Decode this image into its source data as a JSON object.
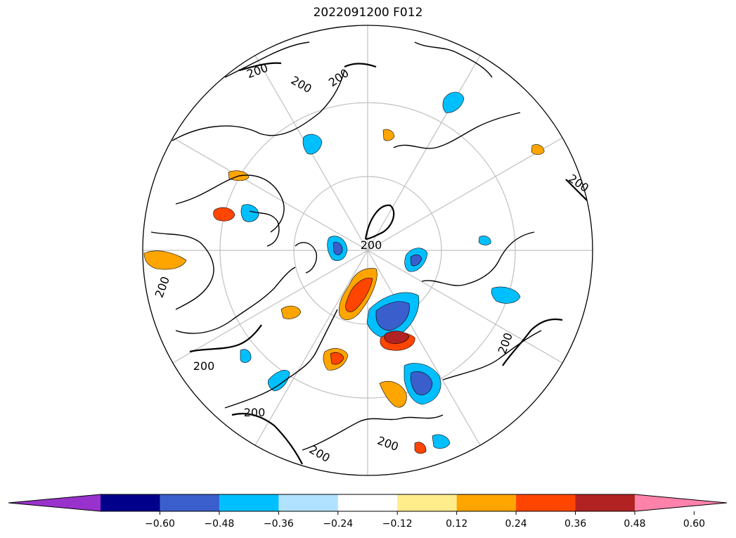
{
  "title": "2022091200 F012",
  "contour_label": "200",
  "colorbar": {
    "ticks": [
      "−0.60",
      "−0.48",
      "−0.36",
      "−0.24",
      "−0.12",
      "0.12",
      "0.24",
      "0.36",
      "0.48",
      "0.60"
    ],
    "colors": [
      "#9932cc",
      "#00008b",
      "#3a5fcd",
      "#00bfff",
      "#b0e2ff",
      "#ffffff",
      "#ffec8b",
      "#ffa500",
      "#ff4500",
      "#b22222",
      "#ff82ab"
    ]
  },
  "palette": {
    "land_outline": "#000000",
    "graticule": "#c0c0c0",
    "contour": "#000000"
  }
}
